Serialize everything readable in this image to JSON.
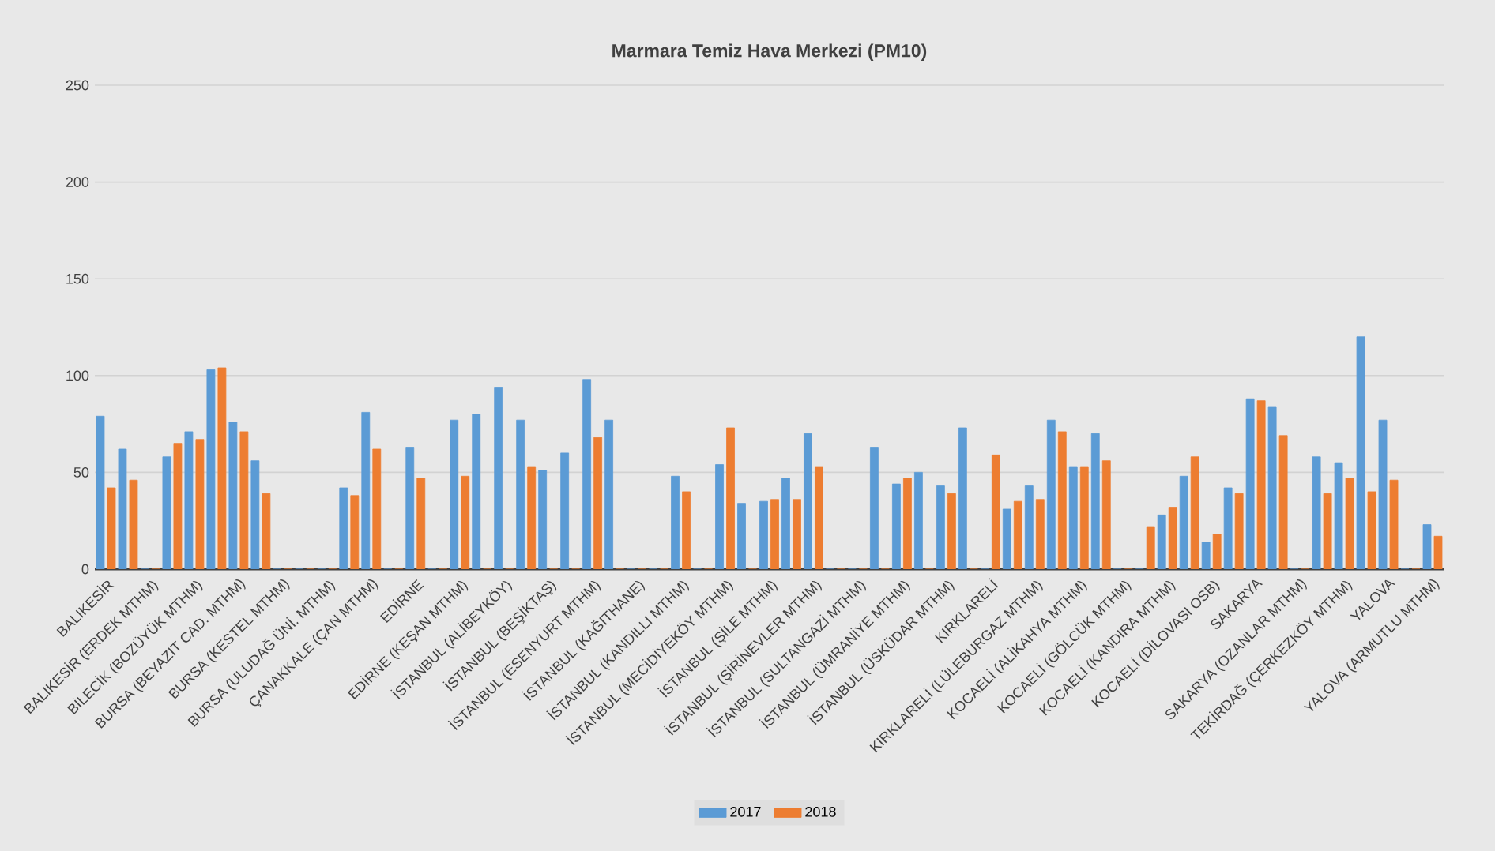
{
  "chart_data": {
    "type": "bar",
    "title": "Marmara Temiz Hava Merkezi (PM10)",
    "categories": [
      "BALIKESİR",
      null,
      "BALIKESİR (ERDEK MTHM)",
      null,
      "BİLECİK (BOZÜYÜK MTHM)",
      null,
      "BURSA (BEYAZIT CAD. MTHM)",
      null,
      "BURSA (KESTEL MTHM)",
      null,
      "BURSA (ULUDAĞ ÜNİ. MTHM)",
      null,
      "ÇANAKKALE (ÇAN MTHM)",
      null,
      "EDİRNE",
      null,
      "EDİRNE (KEŞAN MTHM)",
      null,
      "İSTANBUL (ALİBEYKÖY)",
      null,
      "İSTANBUL (BEŞİKTAŞ)",
      null,
      "İSTANBUL (ESENYURT MTHM)",
      null,
      "İSTANBUL (KAĞITHANE)",
      null,
      "İSTANBUL (KANDILLI MTHM)",
      null,
      "İSTANBUL (MECİDİYEKÖY MTHM)",
      null,
      "İSTANBUL (ŞİLE MTHM)",
      null,
      "İSTANBUL (ŞİRİNEVLER MTHM)",
      null,
      "İSTANBUL (SULTANGAZİ MTHM)",
      null,
      "İSTANBUL (ÜMRANİYE MTHM)",
      null,
      "İSTANBUL (ÜSKÜDAR MTHM)",
      null,
      "KIRKLARELİ",
      null,
      "KIRKLARELİ (LÜLEBURGAZ MTHM)",
      null,
      "KOCAELİ (ALİKAHYA MTHM)",
      null,
      "KOCAELİ (GÖLCÜK MTHM)",
      null,
      "KOCAELİ (KANDIRA MTHM)",
      null,
      "KOCAELİ (DİLOVASI OSB)",
      null,
      "SAKARYA",
      null,
      "SAKARYA (OZANLAR MTHM)",
      null,
      "TEKİRDAĞ (ÇERKEZKÖY MTHM)",
      null,
      "YALOVA",
      null,
      "YALOVA (ARMUTLU MTHM)"
    ],
    "series": [
      {
        "name": "2017",
        "color": "#5b9bd5",
        "values": [
          79,
          62,
          0,
          58,
          71,
          103,
          76,
          56,
          0,
          0,
          0,
          42,
          81,
          0,
          63,
          0,
          77,
          80,
          94,
          77,
          51,
          60,
          98,
          77,
          0,
          0,
          48,
          0,
          54,
          34,
          35,
          47,
          70,
          0,
          0,
          63,
          44,
          50,
          43,
          73,
          0,
          31,
          43,
          77,
          53,
          70,
          0,
          0,
          28,
          48,
          14,
          42,
          88,
          84,
          0,
          58,
          55,
          120,
          77,
          0,
          23
        ]
      },
      {
        "name": "2018",
        "color": "#ed7d31",
        "values": [
          42,
          46,
          0,
          65,
          67,
          104,
          71,
          39,
          0,
          0,
          0,
          38,
          62,
          0,
          47,
          0,
          48,
          0,
          0,
          53,
          0,
          0,
          68,
          0,
          0,
          0,
          40,
          0,
          73,
          0,
          36,
          36,
          53,
          0,
          0,
          0,
          47,
          0,
          39,
          0,
          59,
          35,
          36,
          71,
          53,
          56,
          0,
          22,
          32,
          58,
          18,
          39,
          87,
          69,
          0,
          39,
          47,
          40,
          46,
          0,
          17
        ]
      }
    ],
    "ylim": [
      0,
      250
    ],
    "yticks": [
      0,
      50,
      100,
      150,
      200,
      250
    ],
    "grid": "y",
    "legend": "bottom"
  }
}
